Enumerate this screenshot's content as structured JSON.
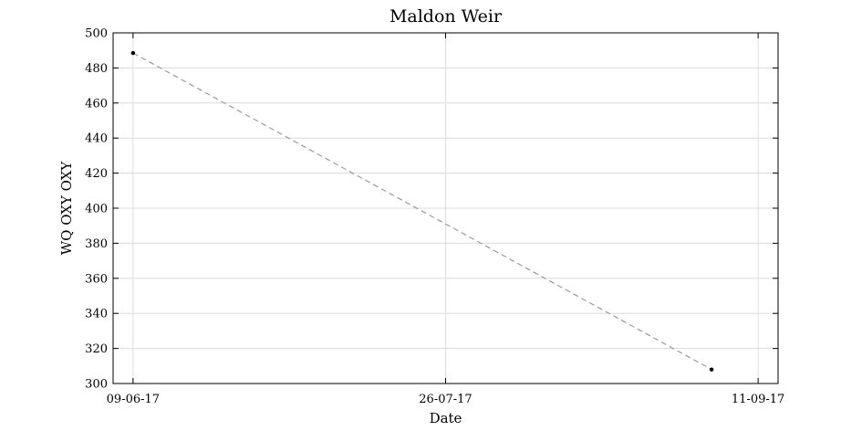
{
  "chart_data": {
    "type": "line",
    "title": "Maldon Weir",
    "xlabel": "Date",
    "ylabel": "WQ OXY OXY",
    "x_is_date": true,
    "xlim": [
      "2017-06-06",
      "2017-09-14"
    ],
    "ylim": [
      300,
      500
    ],
    "xticks": [
      {
        "date": "2017-06-09",
        "label": "09-06-17"
      },
      {
        "date": "2017-07-26",
        "label": "26-07-17"
      },
      {
        "date": "2017-09-11",
        "label": "11-09-17"
      }
    ],
    "yticks": [
      300,
      320,
      340,
      360,
      380,
      400,
      420,
      440,
      460,
      480,
      500
    ],
    "grid": true,
    "series": [
      {
        "points": [
          {
            "x": "2017-06-09",
            "y": 488.5
          },
          {
            "x": "2017-09-04",
            "y": 308
          }
        ],
        "line_style": "dashed",
        "line_color": "#9a9a9a",
        "marker_color": "#000000"
      }
    ]
  }
}
